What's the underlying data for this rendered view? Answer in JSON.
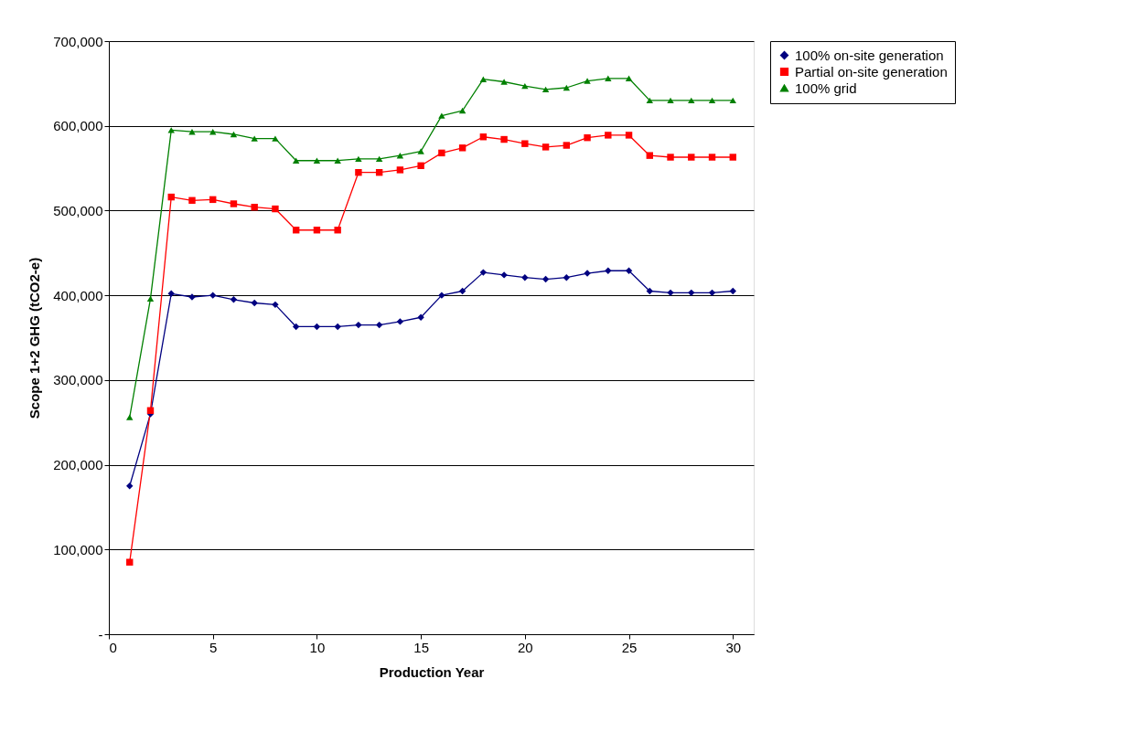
{
  "chart_data": {
    "type": "line",
    "xlabel": "Production Year",
    "ylabel": "Scope 1+2 GHG (tCO2-e)",
    "x": [
      1,
      2,
      3,
      4,
      5,
      6,
      7,
      8,
      9,
      10,
      11,
      12,
      13,
      14,
      15,
      16,
      17,
      18,
      19,
      20,
      21,
      22,
      23,
      24,
      25,
      26,
      27,
      28,
      29,
      30
    ],
    "series": [
      {
        "name": "100% on-site generation",
        "color": "#000080",
        "marker": "diamond",
        "values": [
          175000,
          260000,
          402000,
          398000,
          400000,
          395000,
          391000,
          389000,
          363000,
          363000,
          363000,
          365000,
          365000,
          369000,
          374000,
          400000,
          405000,
          427000,
          424000,
          421000,
          419000,
          421000,
          426000,
          429000,
          429000,
          405000,
          403000,
          403000,
          403000,
          405000
        ]
      },
      {
        "name": "Partial on-site generation",
        "color": "#ff0000",
        "marker": "square",
        "values": [
          85000,
          264000,
          516000,
          512000,
          513000,
          508000,
          504000,
          502000,
          477000,
          477000,
          477000,
          545000,
          545000,
          548000,
          553000,
          568000,
          574000,
          587000,
          584000,
          579000,
          575000,
          577000,
          586000,
          589000,
          589000,
          565000,
          563000,
          563000,
          563000,
          563000
        ]
      },
      {
        "name": "100% grid",
        "color": "#008000",
        "marker": "triangle",
        "values": [
          256000,
          396000,
          595000,
          593000,
          593000,
          590000,
          585000,
          585000,
          559000,
          559000,
          559000,
          561000,
          561000,
          565000,
          570000,
          612000,
          618000,
          655000,
          652000,
          647000,
          643000,
          645000,
          653000,
          656000,
          656000,
          630000,
          630000,
          630000,
          630000,
          630000
        ]
      }
    ],
    "xlim": [
      0,
      31
    ],
    "xticks": [
      0,
      5,
      10,
      15,
      20,
      25,
      30
    ],
    "ylim": [
      0,
      700000
    ],
    "yticks": [
      {
        "value": 0,
        "label": "-"
      },
      {
        "value": 100000,
        "label": "100,000"
      },
      {
        "value": 200000,
        "label": "200,000"
      },
      {
        "value": 300000,
        "label": "300,000"
      },
      {
        "value": 400000,
        "label": "400,000"
      },
      {
        "value": 500000,
        "label": "500,000"
      },
      {
        "value": 600000,
        "label": "600,000"
      },
      {
        "value": 700000,
        "label": "700,000"
      }
    ],
    "grid": "y",
    "legend": "right",
    "line_style": "solid"
  }
}
